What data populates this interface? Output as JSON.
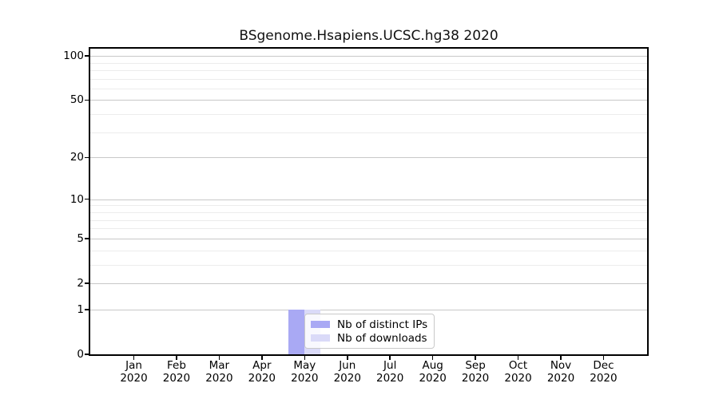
{
  "chart_data": {
    "type": "bar",
    "title": "BSgenome.Hsapiens.UCSC.hg38 2020",
    "x_tick_months": [
      "Jan",
      "Feb",
      "Mar",
      "Apr",
      "May",
      "Jun",
      "Jul",
      "Aug",
      "Sep",
      "Oct",
      "Nov",
      "Dec"
    ],
    "x_tick_year": "2020",
    "series": [
      {
        "name": "Nb of distinct IPs",
        "color": "#a9a9f4",
        "values": [
          0,
          0,
          0,
          0,
          1,
          0,
          0,
          0,
          0,
          0,
          0,
          0
        ]
      },
      {
        "name": "Nb of downloads",
        "color": "#dadaf8",
        "values": [
          0,
          0,
          0,
          0,
          1,
          0,
          0,
          0,
          0,
          0,
          0,
          0
        ]
      }
    ],
    "y_axis": {
      "scale": "log10(1+x)",
      "major_ticks": [
        0,
        1,
        2,
        5,
        10,
        20,
        50,
        100
      ],
      "minor_ticks": [
        3,
        4,
        6,
        7,
        8,
        9,
        30,
        40,
        60,
        70,
        80,
        90
      ],
      "range": [
        0,
        100
      ]
    },
    "grid": "horizontal",
    "legend_position": "inside-lower-left-of-center",
    "colors": {
      "major_grid": "#c8c8c8",
      "minor_grid": "#ececec",
      "axis": "#000000",
      "background": "#ffffff"
    }
  }
}
